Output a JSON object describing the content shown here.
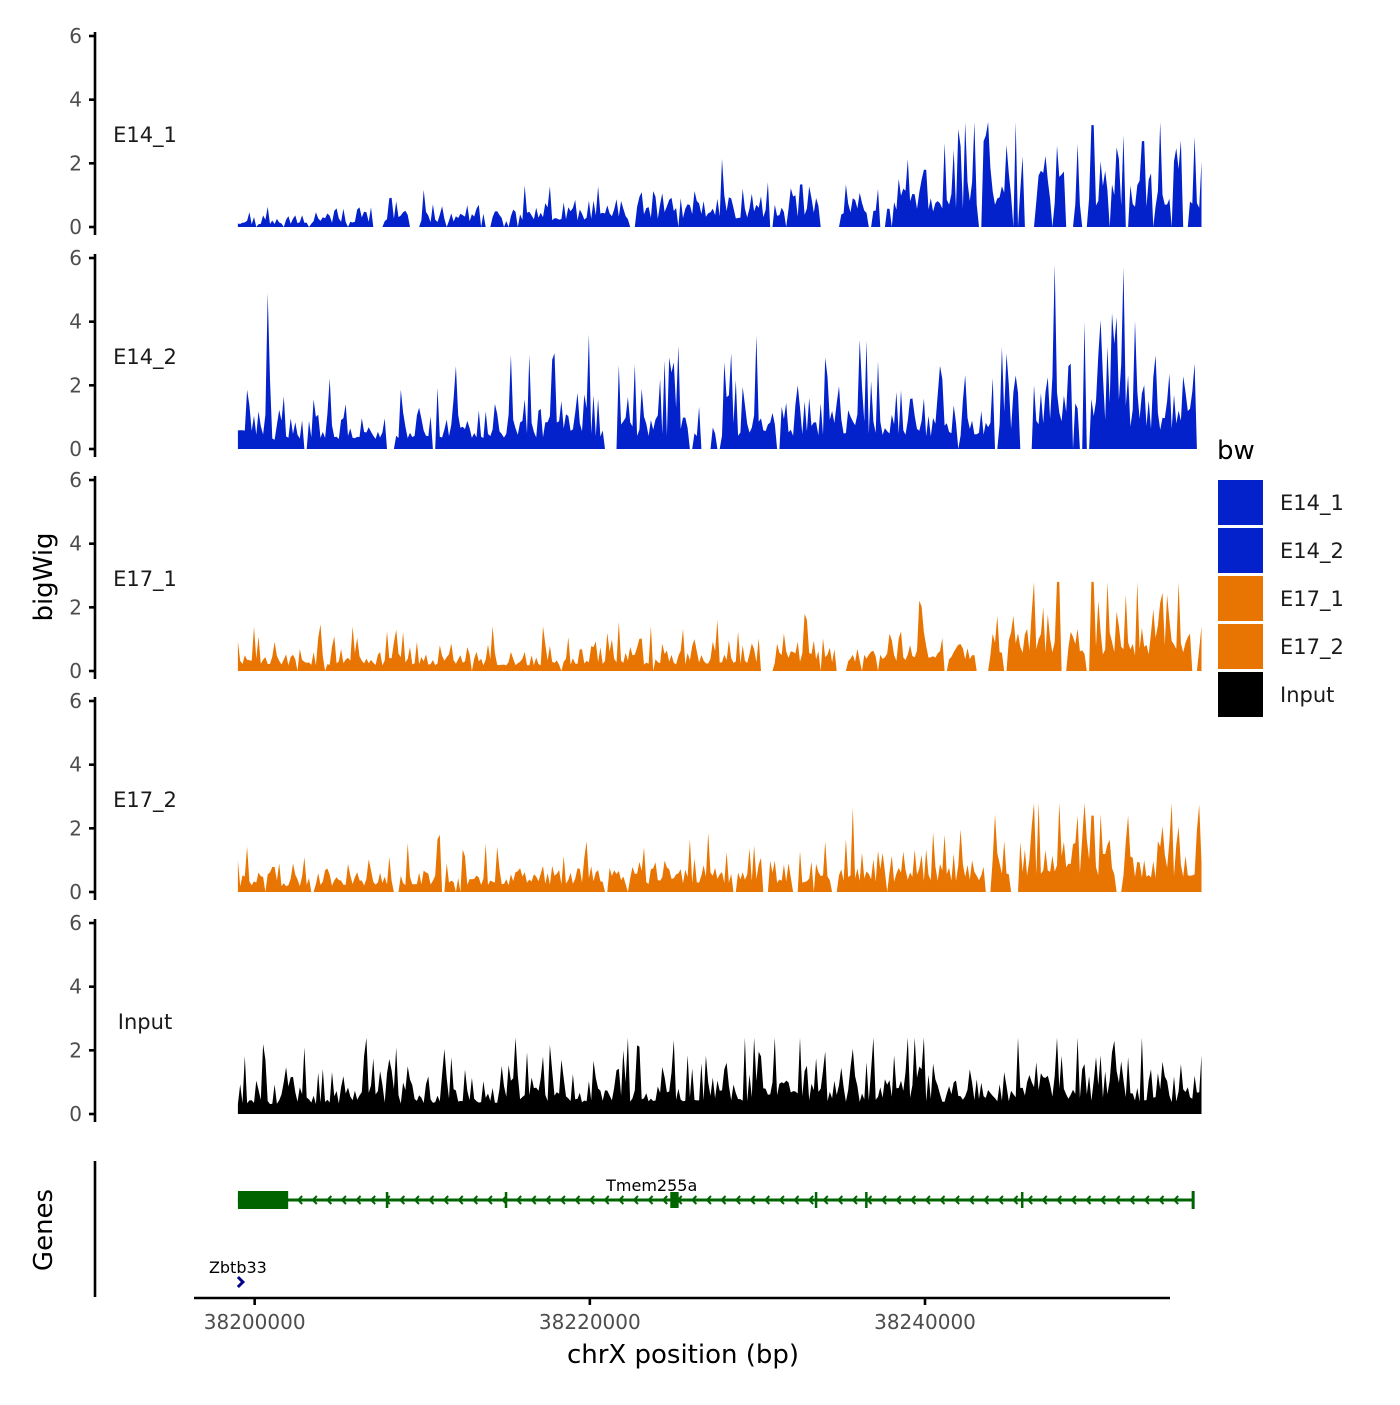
{
  "chart_data": {
    "type": "area",
    "xlabel": "chrX position (bp)",
    "ylabel": "bigWig",
    "genes_label": "Genes",
    "xlim": [
      38196500,
      38254500
    ],
    "x_ticks": [
      38200000,
      38220000,
      38240000
    ],
    "x_tick_labels": [
      "38200000",
      "38220000",
      "38240000"
    ],
    "ylim": [
      0,
      6
    ],
    "y_ticks": [
      0,
      2,
      4,
      6
    ],
    "y_tick_labels": [
      "0",
      "2",
      "4",
      "6"
    ],
    "region": [
      38199000,
      38256500
    ],
    "tracks": [
      {
        "name": "E14_1",
        "color": "#0322CC",
        "seed": 11,
        "anchors": [
          [
            38199000,
            0.2
          ],
          [
            38215000,
            0.5
          ],
          [
            38230000,
            0.8
          ],
          [
            38240000,
            1.3
          ],
          [
            38246000,
            2.1
          ],
          [
            38256500,
            1.6
          ]
        ],
        "peaks": [
          [
            38250000,
            3.2
          ],
          [
            38251800,
            2.9
          ],
          [
            38253000,
            2.7
          ],
          [
            38240000,
            1.8
          ],
          [
            38208000,
            0.9
          ]
        ],
        "max": 3.3,
        "gaps": 0.22
      },
      {
        "name": "E14_2",
        "color": "#0322CC",
        "seed": 23,
        "anchors": [
          [
            38199000,
            0.8
          ],
          [
            38215000,
            1.0
          ],
          [
            38230000,
            1.2
          ],
          [
            38243000,
            1.1
          ],
          [
            38248000,
            2.5
          ],
          [
            38256500,
            1.4
          ]
        ],
        "peaks": [
          [
            38200800,
            4.9
          ],
          [
            38251800,
            5.7
          ],
          [
            38212000,
            2.6
          ],
          [
            38220000,
            3.6
          ],
          [
            38236500,
            3.4
          ],
          [
            38249500,
            4.0
          ]
        ],
        "max": 5.8,
        "gaps": 0.1
      },
      {
        "name": "E17_1",
        "color": "#E87502",
        "seed": 37,
        "anchors": [
          [
            38199000,
            0.5
          ],
          [
            38215000,
            0.5
          ],
          [
            38230000,
            0.6
          ],
          [
            38243000,
            1.0
          ],
          [
            38248000,
            1.6
          ],
          [
            38256500,
            1.2
          ]
        ],
        "peaks": [
          [
            38250000,
            2.8
          ],
          [
            38252000,
            2.4
          ],
          [
            38247000,
            2.0
          ],
          [
            38233000,
            1.6
          ],
          [
            38221000,
            1.2
          ]
        ],
        "max": 2.8,
        "gaps": 0.12
      },
      {
        "name": "E17_2",
        "color": "#E87502",
        "seed": 41,
        "anchors": [
          [
            38199000,
            0.5
          ],
          [
            38215000,
            0.6
          ],
          [
            38230000,
            0.8
          ],
          [
            38243000,
            1.0
          ],
          [
            38248000,
            1.7
          ],
          [
            38256500,
            1.0
          ]
        ],
        "peaks": [
          [
            38248000,
            2.8
          ],
          [
            38250000,
            2.4
          ],
          [
            38234000,
            1.6
          ],
          [
            38211000,
            1.8
          ]
        ],
        "max": 2.8,
        "gaps": 0.16
      },
      {
        "name": "Input",
        "color": "#000000",
        "seed": 53,
        "anchors": [
          [
            38199000,
            0.8
          ],
          [
            38215000,
            1.0
          ],
          [
            38230000,
            1.1
          ],
          [
            38243000,
            1.0
          ],
          [
            38248000,
            1.2
          ],
          [
            38256500,
            1.0
          ]
        ],
        "peaks": [
          [
            38245500,
            2.4
          ],
          [
            38251300,
            2.3
          ],
          [
            38203000,
            2.1
          ],
          [
            38222000,
            2.0
          ]
        ],
        "max": 2.4,
        "gaps": 0.0
      }
    ],
    "legend": {
      "title": "bw",
      "entries": [
        {
          "label": "E14_1",
          "color": "#0322CC"
        },
        {
          "label": "E14_2",
          "color": "#0322CC"
        },
        {
          "label": "E17_1",
          "color": "#E87502"
        },
        {
          "label": "E17_2",
          "color": "#E87502"
        },
        {
          "label": "Input",
          "color": "#000000"
        }
      ]
    },
    "genes": [
      {
        "name": "Tmem255a",
        "strand": "-",
        "color": "#006400",
        "start": 38199000,
        "end": 38256000,
        "label_pos": 38222500,
        "exons": [
          [
            38199000,
            38202000
          ],
          [
            38224800,
            38225300
          ]
        ],
        "exon_marks": [
          38207900,
          38215000,
          38225200,
          38233500,
          38236500,
          38245800
        ]
      },
      {
        "name": "Zbtb33",
        "strand": "+",
        "color": "#00008B",
        "start": 38199000,
        "end": 38199500,
        "label_pos": 38199500
      }
    ]
  }
}
